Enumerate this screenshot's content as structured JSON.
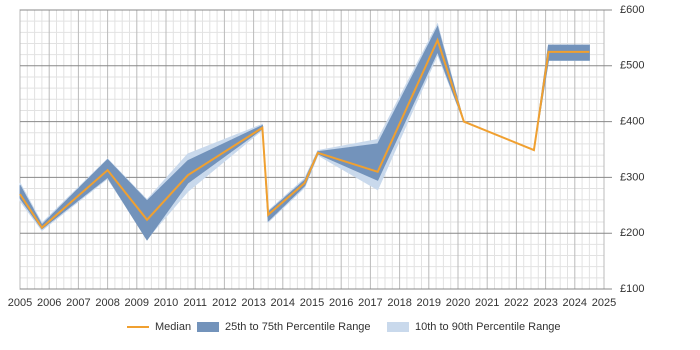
{
  "chart_data": {
    "type": "band-line",
    "x": [
      2005,
      2005.75,
      2008,
      2009.35,
      2010.75,
      2013.3,
      2013.5,
      2014.75,
      2015.2,
      2017.25,
      2019.3,
      2020.2,
      2022.6,
      2023.1,
      2024.5
    ],
    "series": [
      {
        "name": "Median",
        "color": "#f0a030",
        "kind": "line",
        "values": [
          270,
          210,
          313,
          224,
          304,
          389,
          233,
          290,
          344,
          310,
          546,
          400,
          349,
          525,
          525
        ]
      },
      {
        "name": "25th to 75th Percentile Range",
        "color": "#7393bb",
        "kind": "band",
        "high": [
          286,
          215,
          332,
          258,
          330,
          393,
          238,
          295,
          346,
          360,
          570,
          400,
          349,
          537,
          537
        ],
        "low": [
          263,
          208,
          300,
          188,
          290,
          387,
          222,
          285,
          342,
          295,
          525,
          400,
          349,
          510,
          510
        ]
      },
      {
        "name": "10th to 90th Percentile Range",
        "color": "#c9d9ec",
        "kind": "band",
        "high": [
          290,
          218,
          333,
          260,
          342,
          395,
          240,
          298,
          348,
          368,
          575,
          400,
          349,
          537,
          537
        ],
        "low": [
          258,
          205,
          298,
          190,
          275,
          385,
          220,
          282,
          340,
          278,
          520,
          400,
          349,
          510,
          510
        ]
      }
    ],
    "xlim": [
      2005,
      2025
    ],
    "xticks": [
      2005,
      2006,
      2007,
      2008,
      2009,
      2010,
      2011,
      2012,
      2013,
      2014,
      2015,
      2016,
      2017,
      2018,
      2019,
      2020,
      2021,
      2022,
      2023,
      2024,
      2025
    ],
    "ylim": [
      100,
      600
    ],
    "yticks": [
      {
        "value": 100,
        "label": "£100"
      },
      {
        "value": 200,
        "label": "£200"
      },
      {
        "value": 300,
        "label": "£300"
      },
      {
        "value": 400,
        "label": "£400"
      },
      {
        "value": 500,
        "label": "£500"
      },
      {
        "value": 600,
        "label": "£600"
      }
    ],
    "grid": true,
    "minor_grid": {
      "x": 4,
      "y": 5
    },
    "legend": "bottom"
  }
}
